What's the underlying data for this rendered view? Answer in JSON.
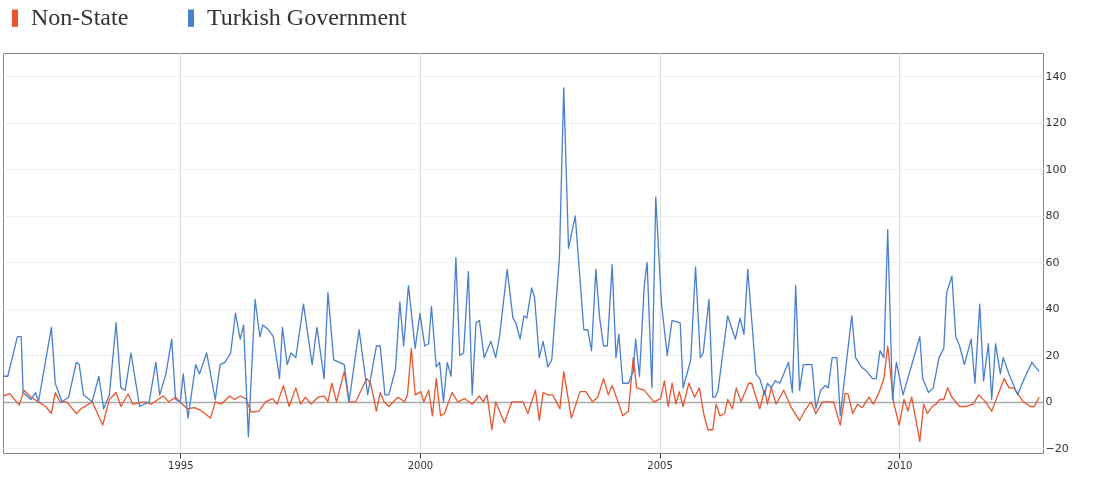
{
  "chart_data": {
    "type": "line",
    "legend": "top left",
    "grid": true,
    "line_style": "solid",
    "xlim": [
      1991.3,
      2013.0
    ],
    "xticks": [
      1995,
      2000,
      2005,
      2010
    ],
    "ylim": [
      -22,
      150
    ],
    "yticks": [
      -20,
      0,
      20,
      40,
      60,
      80,
      100,
      120,
      140
    ],
    "series": [
      {
        "name": "Non-State",
        "color": "#e8552f",
        "x": [
          1991.3,
          1991.44,
          1991.64,
          1991.74,
          1991.88,
          1992.04,
          1992.19,
          1992.31,
          1992.39,
          1992.49,
          1992.63,
          1992.83,
          1992.93,
          1993.16,
          1993.38,
          1993.52,
          1993.66,
          1993.76,
          1993.91,
          1994.01,
          1994.25,
          1994.39,
          1994.64,
          1994.76,
          1994.9,
          1995.14,
          1995.3,
          1995.45,
          1995.63,
          1995.73,
          1995.85,
          1996.03,
          1996.13,
          1996.25,
          1996.36,
          1996.48,
          1996.64,
          1996.78,
          1996.92,
          1997.02,
          1997.15,
          1997.27,
          1997.41,
          1997.51,
          1997.61,
          1997.73,
          1997.87,
          1998.0,
          1998.08,
          1998.16,
          1998.26,
          1998.42,
          1998.52,
          1998.66,
          1998.89,
          1998.97,
          1999.09,
          1999.17,
          1999.25,
          1999.35,
          1999.54,
          1999.68,
          1999.74,
          1999.82,
          1999.9,
          2000.02,
          2000.08,
          2000.18,
          2000.26,
          2000.34,
          2000.43,
          2000.51,
          2000.67,
          2000.79,
          2000.93,
          2001.09,
          2001.24,
          2001.32,
          2001.4,
          2001.5,
          2001.58,
          2001.76,
          2001.92,
          2002.15,
          2002.25,
          2002.41,
          2002.49,
          2002.57,
          2002.67,
          2002.77,
          2002.92,
          2003.0,
          2003.16,
          2003.34,
          2003.46,
          2003.6,
          2003.71,
          2003.83,
          2003.93,
          2004.01,
          2004.15,
          2004.23,
          2004.35,
          2004.45,
          2004.52,
          2004.68,
          2004.88,
          2005.02,
          2005.1,
          2005.18,
          2005.26,
          2005.34,
          2005.41,
          2005.49,
          2005.61,
          2005.73,
          2005.83,
          2005.93,
          2006.01,
          2006.11,
          2006.18,
          2006.26,
          2006.36,
          2006.42,
          2006.52,
          2006.6,
          2006.7,
          2006.86,
          2006.92,
          2007.09,
          2007.19,
          2007.25,
          2007.33,
          2007.43,
          2007.59,
          2007.75,
          2007.92,
          2008.04,
          2008.16,
          2008.26,
          2008.4,
          2008.63,
          2008.77,
          2008.87,
          2008.93,
          2009.03,
          2009.13,
          2009.23,
          2009.37,
          2009.46,
          2009.58,
          2009.68,
          2009.76,
          2009.88,
          2010.0,
          2010.1,
          2010.18,
          2010.26,
          2010.43,
          2010.51,
          2010.59,
          2010.69,
          2010.77,
          2010.85,
          2010.93,
          2011.01,
          2011.1,
          2011.26,
          2011.4,
          2011.54,
          2011.66,
          2011.8,
          2011.93,
          2012.19,
          2012.29,
          2012.39,
          2012.59,
          2012.73,
          2012.82,
          2012.92
        ],
        "values": [
          2.5,
          3.5,
          -1.4,
          5,
          2,
          0,
          -2,
          -5,
          4,
          0,
          0,
          -5,
          -3,
          0,
          -10,
          1,
          4,
          -2,
          3.5,
          -1,
          0,
          -1,
          2.5,
          0,
          2,
          -3,
          -2.5,
          -4,
          -7,
          0,
          -1,
          2.5,
          1,
          2.5,
          1.4,
          -4.4,
          -4,
          0,
          1.4,
          -1,
          7,
          -2,
          6,
          -1,
          2,
          -1,
          2,
          2.5,
          0,
          8,
          0,
          13,
          0,
          0,
          10,
          8,
          -4,
          4,
          0,
          -2,
          2,
          0,
          3,
          23,
          3,
          4.4,
          0,
          5,
          -6,
          10,
          -6,
          -5,
          4,
          0,
          1.4,
          -1,
          2.5,
          0,
          3,
          -12,
          0,
          -9,
          0,
          0,
          -5,
          5,
          -8,
          4,
          3,
          3,
          -3,
          13,
          -7,
          4.4,
          4.4,
          0,
          2,
          10,
          3,
          7,
          -1,
          -6,
          -4,
          19,
          6,
          5,
          0,
          1.4,
          9,
          -2,
          8,
          -1,
          4.4,
          -2,
          8,
          2,
          6,
          -6,
          -12,
          -12,
          -1,
          -6,
          -5,
          1,
          -3,
          6,
          0,
          8,
          8,
          -3,
          5,
          -1,
          6,
          -1,
          5,
          -2.5,
          -8,
          -3.5,
          0,
          -5,
          0,
          0,
          -10,
          3.5,
          3.5,
          -5,
          -1,
          -2.5,
          2,
          -1,
          4,
          10,
          24,
          0,
          -10,
          1,
          -4,
          2,
          -17,
          -1,
          -5,
          -2,
          -1,
          1,
          1,
          6,
          2,
          -2,
          -2,
          -1,
          3,
          0,
          -4,
          10,
          6,
          6,
          0,
          -2,
          -2,
          2
        ]
      },
      {
        "name": "Turkish Government",
        "color": "#4a7fcc",
        "x": [
          1991.3,
          1991.4,
          1991.6,
          1991.68,
          1991.72,
          1991.88,
          1991.98,
          1992.04,
          1992.31,
          1992.39,
          1992.53,
          1992.67,
          1992.83,
          1992.89,
          1992.98,
          1993.16,
          1993.3,
          1993.4,
          1993.52,
          1993.66,
          1993.76,
          1993.85,
          1993.97,
          1994.15,
          1994.35,
          1994.49,
          1994.57,
          1994.7,
          1994.82,
          1994.9,
          1995.0,
          1995.06,
          1995.16,
          1995.32,
          1995.4,
          1995.55,
          1995.73,
          1995.83,
          1995.93,
          1996.05,
          1996.15,
          1996.25,
          1996.32,
          1996.42,
          1996.56,
          1996.66,
          1996.72,
          1996.84,
          1996.94,
          1997.07,
          1997.13,
          1997.23,
          1997.31,
          1997.41,
          1997.57,
          1997.75,
          1997.85,
          1998.0,
          1998.08,
          1998.2,
          1998.32,
          1998.42,
          1998.52,
          1998.73,
          1998.91,
          1999.09,
          1999.17,
          1999.27,
          1999.35,
          1999.49,
          1999.58,
          1999.66,
          1999.76,
          1999.9,
          2000.0,
          2000.1,
          2000.18,
          2000.24,
          2000.34,
          2000.41,
          2000.49,
          2000.57,
          2000.65,
          2000.75,
          2000.83,
          2000.91,
          2001.01,
          2001.09,
          2001.17,
          2001.24,
          2001.34,
          2001.48,
          2001.58,
          2001.66,
          2001.82,
          2001.94,
          2002.0,
          2002.09,
          2002.17,
          2002.23,
          2002.33,
          2002.39,
          2002.49,
          2002.57,
          2002.67,
          2002.75,
          2002.91,
          2003.0,
          2003.1,
          2003.24,
          2003.32,
          2003.42,
          2003.5,
          2003.58,
          2003.67,
          2003.75,
          2003.83,
          2003.91,
          2004.01,
          2004.09,
          2004.15,
          2004.23,
          2004.35,
          2004.45,
          2004.5,
          2004.58,
          2004.68,
          2004.74,
          2004.84,
          2004.92,
          2005.04,
          2005.16,
          2005.26,
          2005.43,
          2005.49,
          2005.65,
          2005.75,
          2005.85,
          2005.91,
          2006.03,
          2006.11,
          2006.16,
          2006.22,
          2006.42,
          2006.58,
          2006.68,
          2006.76,
          2006.84,
          2007.01,
          2007.09,
          2007.19,
          2007.25,
          2007.33,
          2007.41,
          2007.51,
          2007.59,
          2007.69,
          2007.77,
          2007.84,
          2007.92,
          2008.0,
          2008.18,
          2008.26,
          2008.36,
          2008.46,
          2008.52,
          2008.6,
          2008.7,
          2008.77,
          2009.01,
          2009.09,
          2009.21,
          2009.33,
          2009.44,
          2009.52,
          2009.6,
          2009.68,
          2009.76,
          2009.86,
          2009.94,
          2010.08,
          2010.43,
          2010.49,
          2010.61,
          2010.71,
          2010.83,
          2010.93,
          2010.99,
          2011.1,
          2011.18,
          2011.26,
          2011.36,
          2011.5,
          2011.58,
          2011.68,
          2011.76,
          2011.86,
          2011.93,
          2012.01,
          2012.11,
          2012.17,
          2012.29,
          2012.47,
          2012.61,
          2012.77,
          2012.92
        ],
        "values": [
          11,
          11,
          28,
          28,
          4,
          1,
          4,
          0,
          32,
          8,
          0,
          2,
          17,
          16,
          3,
          0,
          11,
          -3,
          3,
          34,
          6,
          5,
          21,
          -2,
          0,
          17,
          3,
          12,
          27,
          1,
          0,
          12,
          -7,
          16,
          12,
          21,
          1,
          16,
          17,
          21,
          38,
          27,
          33,
          -15,
          44,
          28,
          33,
          31,
          28,
          10,
          32,
          16,
          21,
          19,
          42,
          16,
          32,
          10,
          47,
          18,
          17,
          16,
          0,
          31,
          3,
          24,
          24,
          3,
          3,
          14,
          43,
          24,
          50,
          23,
          38,
          24,
          25,
          41,
          15,
          17,
          0,
          17,
          11,
          62,
          20,
          21,
          56,
          3,
          34,
          35,
          19,
          26,
          19,
          28,
          57,
          36,
          34,
          27,
          37,
          36,
          49,
          45,
          19,
          26,
          15,
          18,
          62,
          135,
          66,
          80,
          58,
          31,
          31,
          22,
          57,
          36,
          24,
          24,
          59,
          19,
          29,
          8,
          8,
          13,
          27,
          11,
          50,
          60,
          6,
          88,
          42,
          20,
          35,
          34,
          6,
          18,
          58,
          19,
          21,
          44,
          2,
          2,
          5,
          37,
          27,
          36,
          29,
          57,
          12,
          10,
          3,
          8,
          6,
          9,
          8,
          12,
          17,
          4,
          50,
          5,
          16,
          16,
          -3,
          5,
          7,
          6,
          19,
          19,
          -6,
          37,
          19,
          15,
          13,
          10,
          10,
          22,
          19,
          74,
          1,
          17,
          3,
          28,
          10,
          4,
          6,
          19,
          23,
          47,
          54,
          28,
          24,
          16,
          27,
          8,
          42,
          9,
          25,
          1,
          25,
          12,
          19,
          12,
          3,
          10,
          17,
          13
        ]
      }
    ]
  }
}
